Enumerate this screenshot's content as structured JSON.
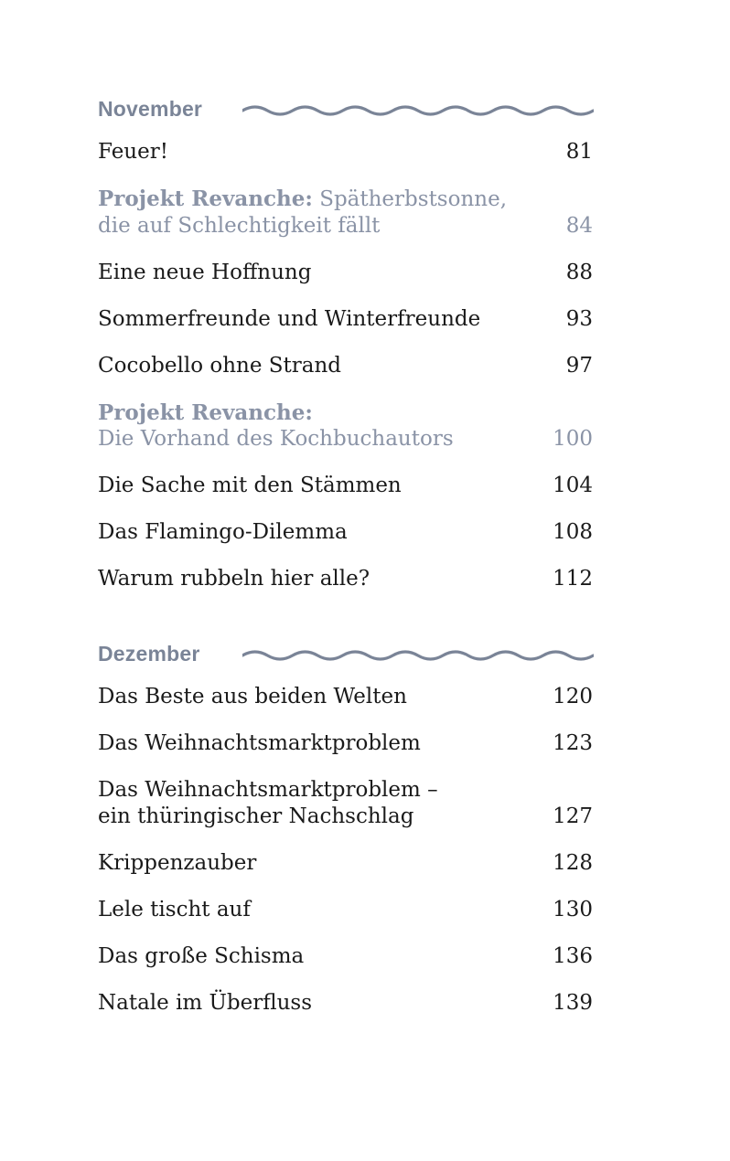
{
  "sections": [
    {
      "title": "November",
      "entries": [
        {
          "line1": "Feuer!",
          "page": "81"
        },
        {
          "label": "Projekt Revanche:",
          "line1": "Spätherbstsonne,",
          "line2": "die auf Schlechtigkeit fällt",
          "page": "84"
        },
        {
          "line1": "Eine neue Hoffnung",
          "page": "88"
        },
        {
          "line1": "Sommerfreunde und Winterfreunde",
          "page": "93"
        },
        {
          "line1": "Cocobello ohne Strand",
          "page": "97"
        },
        {
          "label": "Projekt Revanche:",
          "line2": "Die Vorhand des Kochbuchautors",
          "page": "100"
        },
        {
          "line1": "Die Sache mit den Stämmen",
          "page": "104"
        },
        {
          "line1": "Das Flamingo-Dilemma",
          "page": "108"
        },
        {
          "line1": "Warum rubbeln hier alle?",
          "page": "112"
        }
      ]
    },
    {
      "title": "Dezember",
      "entries": [
        {
          "line1": "Das Beste aus beiden Welten",
          "page": "120"
        },
        {
          "line1": "Das Weihnachtsmarktproblem",
          "page": "123"
        },
        {
          "line1": "Das Weihnachtsmarktproblem –",
          "line2": "ein thüringischer Nachschlag",
          "page": "127"
        },
        {
          "line1": "Krippenzauber",
          "page": "128"
        },
        {
          "line1": "Lele tischt auf",
          "page": "130"
        },
        {
          "line1": "Das große Schisma",
          "page": "136"
        },
        {
          "line1": "Natale im Überfluss",
          "page": "139"
        }
      ]
    }
  ],
  "colors": {
    "heading": "#7a8497",
    "project": "#8a93a6",
    "text": "#1a1a1a"
  }
}
